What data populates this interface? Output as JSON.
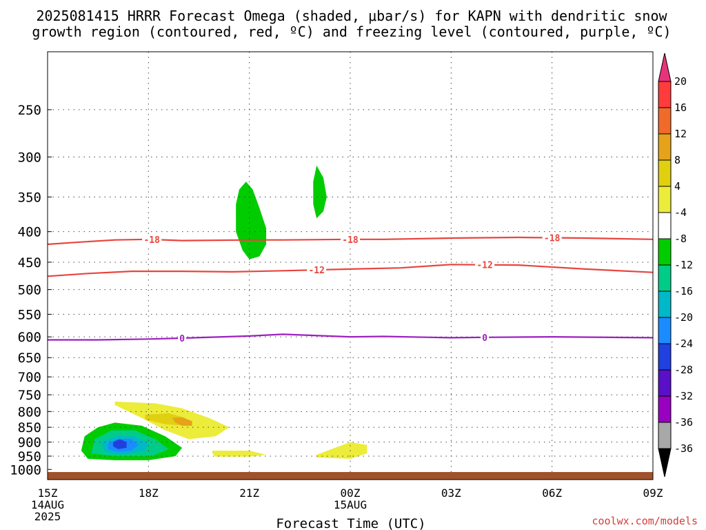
{
  "title_line1": "2025081415 HRRR Forecast Omega (shaded, μbar/s) for KAPN with dendritic snow",
  "title_line2": "growth region (contoured, red, ºC) and freezing level (contoured, purple, ºC)",
  "xlabel": "Forecast Time (UTC)",
  "credit": "coolwx.com/models",
  "colors": {
    "ground": "#a0522d",
    "snow_contour": "#e8443c",
    "freezing_contour": "#9b1fc0"
  },
  "chart_data": {
    "type": "heatmap",
    "y_scale": "log-pressure",
    "y_axis_range_hPa": [
      1040,
      200
    ],
    "x_range_hours": [
      15,
      33
    ],
    "yticks": [
      250,
      300,
      350,
      400,
      450,
      500,
      550,
      600,
      650,
      700,
      750,
      800,
      850,
      900,
      950,
      1000
    ],
    "xticks": [
      {
        "hour": 15,
        "label": "15Z",
        "sub": [
          "14AUG",
          "2025"
        ]
      },
      {
        "hour": 18,
        "label": "18Z",
        "sub": []
      },
      {
        "hour": 21,
        "label": "21Z",
        "sub": []
      },
      {
        "hour": 24,
        "label": "00Z",
        "sub": [
          "15AUG"
        ]
      },
      {
        "hour": 27,
        "label": "03Z",
        "sub": []
      },
      {
        "hour": 30,
        "label": "06Z",
        "sub": []
      },
      {
        "hour": 33,
        "label": "09Z",
        "sub": []
      }
    ],
    "grid": true,
    "ground_pressure_hPa": 1010,
    "colorbar": {
      "levels": [
        {
          "color": "#e8337a",
          "label": ""
        },
        {
          "color": "#ff3b3b",
          "label": "20"
        },
        {
          "color": "#f06a2a",
          "label": "16"
        },
        {
          "color": "#e6a21a",
          "label": "12"
        },
        {
          "color": "#e0d010",
          "label": "8"
        },
        {
          "color": "#ecec3a",
          "label": "4"
        },
        {
          "color": "#ffffff",
          "label": "-4"
        },
        {
          "color": "#00cc00",
          "label": "-8"
        },
        {
          "color": "#00cc88",
          "label": "-12"
        },
        {
          "color": "#00b8c8",
          "label": "-16"
        },
        {
          "color": "#1a8cff",
          "label": "-20"
        },
        {
          "color": "#2040e0",
          "label": "-24"
        },
        {
          "color": "#5a10c8",
          "label": "-28"
        },
        {
          "color": "#9a00c0",
          "label": "-32"
        },
        {
          "color": "#a8a8a8",
          "label": "-36"
        },
        {
          "color": "#000000",
          "label": ""
        }
      ]
    },
    "contours": [
      {
        "name": "-18",
        "color": "#e8443c",
        "points": [
          [
            15,
            420
          ],
          [
            15.8,
            417
          ],
          [
            17,
            413
          ],
          [
            18,
            412
          ],
          [
            19,
            414
          ],
          [
            21,
            413
          ],
          [
            22,
            413
          ],
          [
            24,
            412
          ],
          [
            25,
            412
          ],
          [
            27,
            410
          ],
          [
            29,
            409
          ],
          [
            31,
            410
          ],
          [
            33,
            412
          ]
        ],
        "labels": [
          {
            "hour": 18.1,
            "text": "-18"
          },
          {
            "hour": 24.0,
            "text": "-18"
          },
          {
            "hour": 30.0,
            "text": "-18"
          }
        ]
      },
      {
        "name": "-12",
        "color": "#e8443c",
        "points": [
          [
            15,
            475
          ],
          [
            16.2,
            470
          ],
          [
            17.5,
            466
          ],
          [
            19,
            466
          ],
          [
            20.5,
            467
          ],
          [
            22,
            465
          ],
          [
            24,
            462
          ],
          [
            25.5,
            460
          ],
          [
            27,
            454
          ],
          [
            29,
            455
          ],
          [
            31,
            462
          ],
          [
            33,
            468
          ]
        ],
        "labels": [
          {
            "hour": 23.0,
            "text": "-12"
          },
          {
            "hour": 28.0,
            "text": "-12"
          }
        ]
      },
      {
        "name": "0",
        "color": "#9b1fc0",
        "points": [
          [
            15,
            607
          ],
          [
            16.5,
            607
          ],
          [
            18,
            605
          ],
          [
            19,
            603
          ],
          [
            21,
            598
          ],
          [
            22,
            594
          ],
          [
            24,
            600
          ],
          [
            25,
            599
          ],
          [
            27,
            602
          ],
          [
            28,
            601
          ],
          [
            30,
            600
          ],
          [
            33,
            602
          ]
        ],
        "labels": [
          {
            "hour": 19.0,
            "text": "0"
          },
          {
            "hour": 28.0,
            "text": "0"
          }
        ]
      }
    ],
    "shaded_regions": [
      {
        "value_range": [
          -8,
          -4
        ],
        "color": "#00cc00",
        "points": [
          [
            20.6,
            360
          ],
          [
            20.7,
            340
          ],
          [
            20.9,
            330
          ],
          [
            21.1,
            340
          ],
          [
            21.3,
            365
          ],
          [
            21.5,
            395
          ],
          [
            21.5,
            420
          ],
          [
            21.3,
            440
          ],
          [
            21.0,
            445
          ],
          [
            20.8,
            430
          ],
          [
            20.6,
            400
          ]
        ]
      },
      {
        "value_range": [
          -8,
          -4
        ],
        "color": "#00cc00",
        "points": [
          [
            22.9,
            330
          ],
          [
            23.0,
            310
          ],
          [
            23.2,
            325
          ],
          [
            23.3,
            350
          ],
          [
            23.2,
            370
          ],
          [
            23.0,
            380
          ],
          [
            22.9,
            360
          ]
        ]
      },
      {
        "value_range": [
          4,
          8
        ],
        "color": "#ecec3a",
        "points": [
          [
            17.0,
            770
          ],
          [
            18.2,
            775
          ],
          [
            19.0,
            790
          ],
          [
            19.8,
            820
          ],
          [
            20.4,
            850
          ],
          [
            20.0,
            880
          ],
          [
            19.2,
            890
          ],
          [
            18.5,
            860
          ],
          [
            17.8,
            820
          ],
          [
            17.3,
            795
          ],
          [
            17.0,
            780
          ]
        ]
      },
      {
        "value_range": [
          8,
          12
        ],
        "color": "#e0d010",
        "points": [
          [
            17.9,
            810
          ],
          [
            18.6,
            805
          ],
          [
            19.1,
            820
          ],
          [
            19.1,
            845
          ],
          [
            18.5,
            840
          ],
          [
            17.9,
            825
          ]
        ]
      },
      {
        "value_range": [
          12,
          16
        ],
        "color": "#e6a21a",
        "points": [
          [
            18.7,
            820
          ],
          [
            19.0,
            818
          ],
          [
            19.3,
            830
          ],
          [
            19.3,
            845
          ],
          [
            19.0,
            845
          ],
          [
            18.8,
            835
          ]
        ]
      },
      {
        "value_range": [
          4,
          8
        ],
        "color": "#ecec3a",
        "points": [
          [
            19.9,
            930
          ],
          [
            21.0,
            930
          ],
          [
            21.5,
            945
          ],
          [
            21.0,
            952
          ],
          [
            20.0,
            952
          ],
          [
            19.9,
            940
          ]
        ]
      },
      {
        "value_range": [
          4,
          8
        ],
        "color": "#ecec3a",
        "points": [
          [
            23.0,
            945
          ],
          [
            24.0,
            900
          ],
          [
            24.5,
            910
          ],
          [
            24.5,
            940
          ],
          [
            24.0,
            960
          ],
          [
            23.0,
            955
          ]
        ]
      },
      {
        "value_range": [
          -8,
          -4
        ],
        "color": "#00cc00",
        "points": [
          [
            16.1,
            880
          ],
          [
            16.5,
            850
          ],
          [
            17.0,
            835
          ],
          [
            17.8,
            845
          ],
          [
            18.5,
            880
          ],
          [
            19.0,
            920
          ],
          [
            18.8,
            950
          ],
          [
            18.0,
            965
          ],
          [
            17.0,
            965
          ],
          [
            16.2,
            960
          ],
          [
            16.0,
            930
          ]
        ]
      },
      {
        "value_range": [
          -12,
          -8
        ],
        "color": "#00cc88",
        "points": [
          [
            16.4,
            890
          ],
          [
            16.9,
            860
          ],
          [
            17.6,
            860
          ],
          [
            18.2,
            890
          ],
          [
            18.6,
            925
          ],
          [
            18.1,
            950
          ],
          [
            17.0,
            950
          ],
          [
            16.3,
            940
          ]
        ]
      },
      {
        "value_range": [
          -16,
          -12
        ],
        "color": "#00b8c8",
        "points": [
          [
            16.6,
            900
          ],
          [
            17.0,
            880
          ],
          [
            17.6,
            880
          ],
          [
            18.0,
            905
          ],
          [
            17.9,
            930
          ],
          [
            17.2,
            945
          ],
          [
            16.7,
            935
          ]
        ]
      },
      {
        "value_range": [
          -20,
          -16
        ],
        "color": "#1a8cff",
        "points": [
          [
            16.8,
            905
          ],
          [
            17.1,
            888
          ],
          [
            17.5,
            890
          ],
          [
            17.7,
            910
          ],
          [
            17.5,
            930
          ],
          [
            17.1,
            935
          ],
          [
            16.8,
            925
          ]
        ]
      },
      {
        "value_range": [
          -24,
          -20
        ],
        "color": "#2040e0",
        "points": [
          [
            16.95,
            900
          ],
          [
            17.15,
            890
          ],
          [
            17.35,
            900
          ],
          [
            17.35,
            920
          ],
          [
            17.1,
            925
          ],
          [
            16.95,
            915
          ]
        ]
      }
    ]
  }
}
